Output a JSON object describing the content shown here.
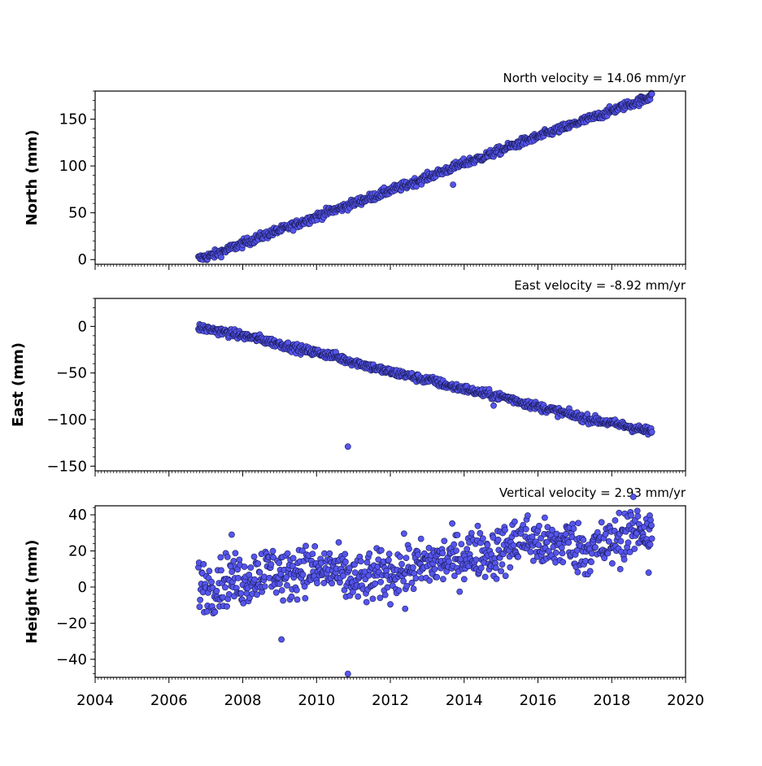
{
  "chart_data": [
    {
      "type": "scatter",
      "title": "North velocity = 14.06 mm/yr",
      "ylabel": "North (mm)",
      "xlim": [
        2004,
        2020
      ],
      "ylim": [
        -5,
        180
      ],
      "yticks": [
        0,
        50,
        100,
        150
      ],
      "ytick_labels": [
        "0",
        "50",
        "100",
        "150"
      ],
      "series": [
        {
          "x": [
            2006.8,
            2007.2,
            2007.6,
            2008.0,
            2008.4,
            2008.8,
            2009.2,
            2009.6,
            2010.0,
            2010.4,
            2010.8,
            2011.2,
            2011.6,
            2012.0,
            2012.4,
            2012.8,
            2013.2,
            2013.6,
            2014.0,
            2014.4,
            2014.8,
            2015.2,
            2015.6,
            2016.0,
            2016.4,
            2016.8,
            2017.2,
            2017.6,
            2018.0,
            2018.4,
            2018.8,
            2019.1
          ],
          "y": [
            1,
            5,
            11,
            17,
            23,
            29,
            34,
            40,
            46,
            52,
            57,
            63,
            68,
            74,
            79,
            85,
            91,
            97,
            103,
            108,
            114,
            120,
            126,
            131,
            137,
            142,
            148,
            153,
            159,
            165,
            170,
            175
          ]
        }
      ],
      "outliers": [
        {
          "x": 2013.7,
          "y": 80
        }
      ]
    },
    {
      "type": "scatter",
      "title": "East velocity = -8.92 mm/yr",
      "ylabel": "East (mm)",
      "xlim": [
        2004,
        2020
      ],
      "ylim": [
        -155,
        30
      ],
      "yticks": [
        0,
        -50,
        -100,
        -150
      ],
      "ytick_labels": [
        "0",
        "−50",
        "−100",
        "−150"
      ],
      "series": [
        {
          "x": [
            2006.8,
            2007.2,
            2007.6,
            2008.0,
            2008.4,
            2008.8,
            2009.2,
            2009.6,
            2010.0,
            2010.4,
            2010.8,
            2011.2,
            2011.6,
            2012.0,
            2012.4,
            2012.8,
            2013.2,
            2013.6,
            2014.0,
            2014.4,
            2014.8,
            2015.2,
            2015.6,
            2016.0,
            2016.4,
            2016.8,
            2017.2,
            2017.6,
            2018.0,
            2018.4,
            2018.8,
            2019.1
          ],
          "y": [
            -1,
            -4,
            -7,
            -10,
            -13,
            -17,
            -21,
            -25,
            -28,
            -31,
            -36,
            -40,
            -45,
            -49,
            -52,
            -56,
            -59,
            -64,
            -67,
            -71,
            -74,
            -77,
            -82,
            -86,
            -90,
            -94,
            -98,
            -101,
            -104,
            -107,
            -111,
            -113
          ]
        }
      ],
      "outliers": [
        {
          "x": 2010.85,
          "y": -129
        },
        {
          "x": 2014.8,
          "y": -85
        }
      ]
    },
    {
      "type": "scatter",
      "title": "Vertical velocity = 2.93 mm/yr",
      "ylabel": "Height (mm)",
      "xlim": [
        2004,
        2020
      ],
      "ylim": [
        -50,
        45
      ],
      "yticks": [
        40,
        20,
        0,
        -20,
        -40
      ],
      "ytick_labels": [
        "40",
        "20",
        "0",
        "−20",
        "−40"
      ],
      "series": [
        {
          "x": [
            2006.8,
            2007.2,
            2007.6,
            2008.0,
            2008.4,
            2008.8,
            2009.2,
            2009.6,
            2010.0,
            2010.4,
            2010.8,
            2011.2,
            2011.6,
            2012.0,
            2012.4,
            2012.8,
            2013.2,
            2013.6,
            2014.0,
            2014.4,
            2014.8,
            2015.2,
            2015.6,
            2016.0,
            2016.4,
            2016.8,
            2017.2,
            2017.6,
            2018.0,
            2018.4,
            2018.8,
            2019.1
          ],
          "y": [
            2,
            0,
            5,
            3,
            8,
            10,
            5,
            12,
            8,
            10,
            5,
            3,
            6,
            8,
            10,
            11,
            14,
            15,
            17,
            20,
            18,
            22,
            28,
            24,
            22,
            26,
            20,
            22,
            24,
            30,
            32,
            28
          ]
        }
      ],
      "spread": 7,
      "outliers": [
        {
          "x": 2007.7,
          "y": 29
        },
        {
          "x": 2009.05,
          "y": -29
        },
        {
          "x": 2010.85,
          "y": -48
        },
        {
          "x": 2012.4,
          "y": -12
        },
        {
          "x": 2019.0,
          "y": 8
        }
      ]
    }
  ],
  "xticks": [
    2004,
    2006,
    2008,
    2010,
    2012,
    2014,
    2016,
    2018,
    2020
  ],
  "xtick_labels": [
    "2004",
    "2006",
    "2008",
    "2010",
    "2012",
    "2014",
    "2016",
    "2018",
    "2020"
  ],
  "marker_fill": "#5555ee",
  "marker_edge": "#1a1a55"
}
